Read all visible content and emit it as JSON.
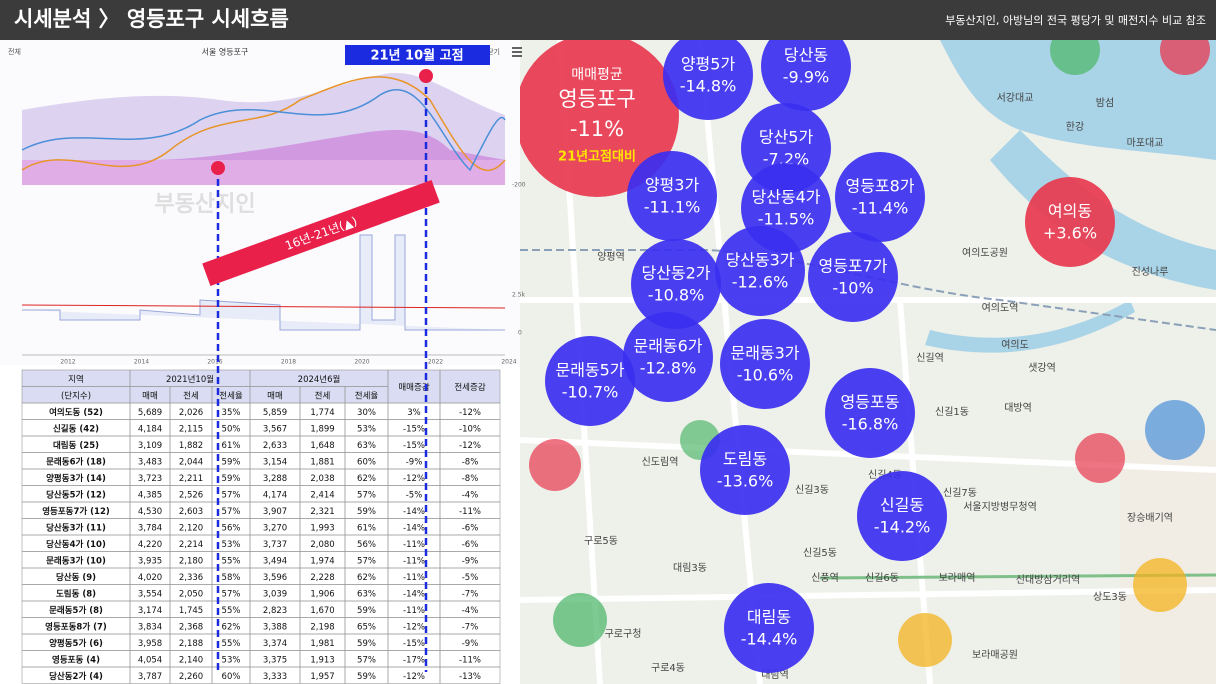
{
  "header": {
    "title": "시세분석 〉 영등포구 시세흐름",
    "subtitle": "부동산지인, 아방님의 전국 평당가 및 매전지수 비교 참조"
  },
  "chart_panel": {
    "tab": "전체",
    "title": "서울 영등포구",
    "close": "닫기",
    "watermark": "부동산지인",
    "peak_callout": "21년 10월 고점",
    "range_band": "16년-21년(▲)",
    "years": [
      "2012",
      "2014",
      "2016",
      "2018",
      "2020",
      "2022",
      "2024"
    ],
    "right_labels": [
      "-200",
      "2.5k",
      "0"
    ]
  },
  "table": {
    "header_top": [
      "지역",
      "2021년10월",
      "2024년6월",
      "매매증감",
      "전세증감"
    ],
    "header_sub": [
      "(단지수)",
      "매매",
      "전세",
      "전세율",
      "매매",
      "전세",
      "전세율"
    ],
    "rows": [
      [
        "여의도동 (52)",
        "5,689",
        "2,026",
        "35%",
        "5,859",
        "1,774",
        "30%",
        "3%",
        "-12%"
      ],
      [
        "신길동 (42)",
        "4,184",
        "2,115",
        "50%",
        "3,567",
        "1,899",
        "53%",
        "-15%",
        "-10%"
      ],
      [
        "대림동 (25)",
        "3,109",
        "1,882",
        "61%",
        "2,633",
        "1,648",
        "63%",
        "-15%",
        "-12%"
      ],
      [
        "문래동6가 (18)",
        "3,483",
        "2,044",
        "59%",
        "3,154",
        "1,881",
        "60%",
        "-9%",
        "-8%"
      ],
      [
        "양평동3가 (14)",
        "3,723",
        "2,211",
        "59%",
        "3,288",
        "2,038",
        "62%",
        "-12%",
        "-8%"
      ],
      [
        "당산동5가 (12)",
        "4,385",
        "2,526",
        "57%",
        "4,174",
        "2,414",
        "57%",
        "-5%",
        "-4%"
      ],
      [
        "영등포동7가 (12)",
        "4,530",
        "2,603",
        "57%",
        "3,907",
        "2,321",
        "59%",
        "-14%",
        "-11%"
      ],
      [
        "당산동3가 (11)",
        "3,784",
        "2,120",
        "56%",
        "3,270",
        "1,993",
        "61%",
        "-14%",
        "-6%"
      ],
      [
        "당산동4가 (10)",
        "4,220",
        "2,214",
        "53%",
        "3,737",
        "2,080",
        "56%",
        "-11%",
        "-6%"
      ],
      [
        "문래동3가 (10)",
        "3,935",
        "2,180",
        "55%",
        "3,494",
        "1,974",
        "57%",
        "-11%",
        "-9%"
      ],
      [
        "당산동 (9)",
        "4,020",
        "2,336",
        "58%",
        "3,596",
        "2,228",
        "62%",
        "-11%",
        "-5%"
      ],
      [
        "도림동 (8)",
        "3,554",
        "2,050",
        "57%",
        "3,039",
        "1,906",
        "63%",
        "-14%",
        "-7%"
      ],
      [
        "문래동5가 (8)",
        "3,174",
        "1,745",
        "55%",
        "2,823",
        "1,670",
        "59%",
        "-11%",
        "-4%"
      ],
      [
        "영등포동8가 (7)",
        "3,834",
        "2,368",
        "62%",
        "3,388",
        "2,198",
        "65%",
        "-12%",
        "-7%"
      ],
      [
        "양평동5가 (6)",
        "3,958",
        "2,188",
        "55%",
        "3,374",
        "1,981",
        "59%",
        "-15%",
        "-9%"
      ],
      [
        "영등포동 (4)",
        "4,054",
        "2,140",
        "53%",
        "3,375",
        "1,913",
        "57%",
        "-17%",
        "-11%"
      ],
      [
        "당산동2가 (4)",
        "3,787",
        "2,260",
        "60%",
        "3,333",
        "1,957",
        "59%",
        "-12%",
        "-13%"
      ]
    ]
  },
  "map": {
    "average": {
      "lines": [
        "매매평균",
        "영등포구",
        "-11%",
        "21년고점대비"
      ],
      "color": "#e8384f"
    },
    "bubbles": [
      {
        "name": "양평5가",
        "change": "-14.8%",
        "color": "#3b2ff0"
      },
      {
        "name": "당산동",
        "change": "-9.9%",
        "color": "#3b2ff0"
      },
      {
        "name": "당산5가",
        "change": "-7.2%",
        "color": "#3b2ff0"
      },
      {
        "name": "양평3가",
        "change": "-11.1%",
        "color": "#3b2ff0"
      },
      {
        "name": "당산동4가",
        "change": "-11.5%",
        "color": "#3b2ff0"
      },
      {
        "name": "영등포8가",
        "change": "-11.4%",
        "color": "#3b2ff0"
      },
      {
        "name": "여의동",
        "change": "+3.6%",
        "color": "#e8384f"
      },
      {
        "name": "당산동3가",
        "change": "-12.6%",
        "color": "#3b2ff0"
      },
      {
        "name": "영등포7가",
        "change": "-10%",
        "color": "#3b2ff0"
      },
      {
        "name": "당산동2가",
        "change": "-10.8%",
        "color": "#3b2ff0"
      },
      {
        "name": "문래동6가",
        "change": "-12.8%",
        "color": "#3b2ff0"
      },
      {
        "name": "문래동3가",
        "change": "-10.6%",
        "color": "#3b2ff0"
      },
      {
        "name": "문래동5가",
        "change": "-10.7%",
        "color": "#3b2ff0"
      },
      {
        "name": "영등포동",
        "change": "-16.8%",
        "color": "#3b2ff0"
      },
      {
        "name": "도림동",
        "change": "-13.6%",
        "color": "#3b2ff0"
      },
      {
        "name": "신길동",
        "change": "-14.2%",
        "color": "#3b2ff0"
      },
      {
        "name": "대림동",
        "change": "-14.4%",
        "color": "#3b2ff0"
      }
    ],
    "labels": [
      "서강대교",
      "밤섬",
      "한강",
      "마포대교",
      "여의도공원",
      "여의도역",
      "진성나루",
      "신길역",
      "여의도",
      "샛강역",
      "대방역",
      "신길1동",
      "신길3동",
      "신길4동",
      "신길7동",
      "서울지방병무청역",
      "장승배기역",
      "구로5동",
      "대림3동",
      "신길5동",
      "신풍역",
      "신길6동",
      "보라매역",
      "신대방삼거리역",
      "상도3동",
      "신도림역",
      "양평역",
      "구로구청",
      "구로4동",
      "대림역",
      "보라매공원"
    ]
  }
}
